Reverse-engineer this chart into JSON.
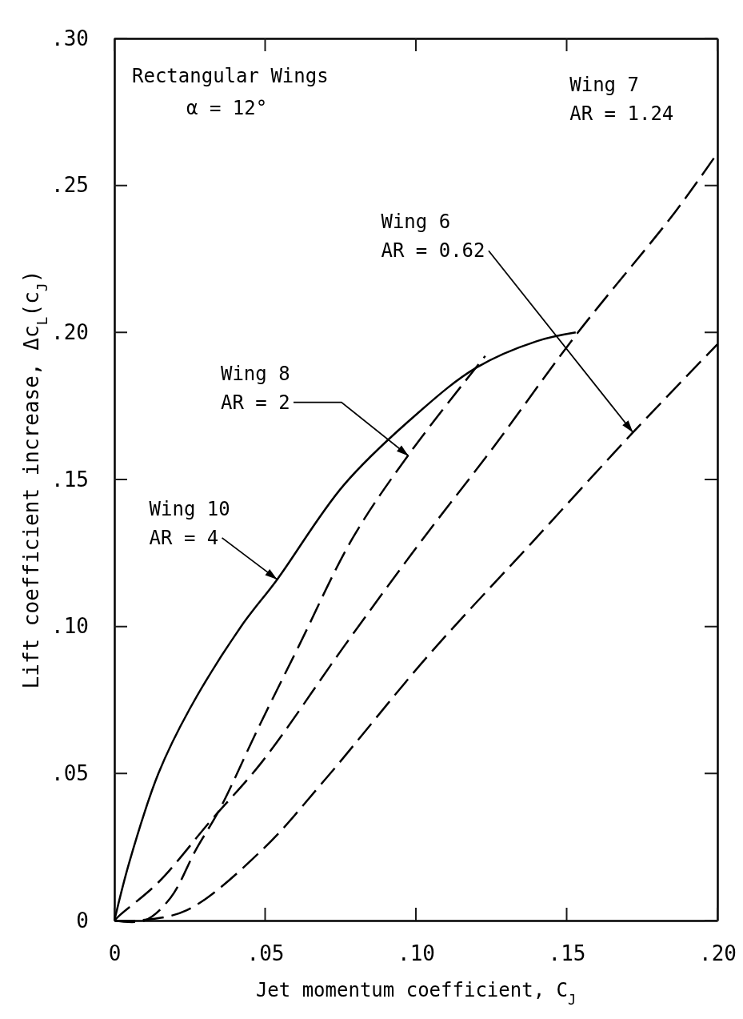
{
  "chart_data": {
    "type": "line",
    "title": "Rectangular Wings",
    "subtitle": "α = 12°",
    "xlabel": "Jet momentum coefficient, C$_{J}$",
    "ylabel": "Lift coefficient increase, Δc$_{L}$(c$_{J}$)",
    "xlim": [
      0,
      0.2
    ],
    "ylim": [
      0,
      0.3
    ],
    "xticks": [
      0,
      {
        "value": 0.05,
        "label": ".05"
      },
      {
        "value": 0.1,
        "label": ".10"
      },
      {
        "value": 0.15,
        "label": ".15"
      },
      {
        "value": 0.2,
        "label": ".20"
      }
    ],
    "yticks": [
      0,
      {
        "value": 0.05,
        "label": ".05"
      },
      {
        "value": 0.1,
        "label": ".10"
      },
      {
        "value": 0.15,
        "label": ".15"
      },
      {
        "value": 0.2,
        "label": ".20"
      },
      {
        "value": 0.25,
        "label": ".25"
      },
      {
        "value": 0.3,
        "label": ".30"
      }
    ],
    "grid": false,
    "marker": "none",
    "series": [
      {
        "color": "#000000",
        "line_style": "solid",
        "x": [
          0,
          0.005,
          0.0146,
          0.025,
          0.042,
          0.054,
          0.076,
          0.1,
          0.12,
          0.14,
          0.153
        ],
        "values": [
          0,
          0.02,
          0.05,
          0.072,
          0.1,
          0.116,
          0.148,
          0.172,
          0.188,
          0.197,
          0.2
        ]
      },
      {
        "color": "#000000",
        "line_style": "dashed",
        "x": [
          0,
          0.01,
          0.0186,
          0.027,
          0.035,
          0.0475,
          0.061,
          0.079,
          0.098,
          0.123
        ],
        "values": [
          0,
          0,
          0.0077,
          0.024,
          0.038,
          0.065,
          0.093,
          0.13,
          0.159,
          0.192
        ]
      },
      {
        "color": "#000000",
        "line_style": "dashed",
        "x": [
          0,
          0.002,
          0.0146,
          0.032,
          0.049,
          0.076,
          0.101,
          0.125,
          0.153,
          0.186,
          0.2
        ],
        "values": [
          0,
          0.002,
          0.013,
          0.034,
          0.054,
          0.093,
          0.128,
          0.16,
          0.199,
          0.241,
          0.261
        ]
      },
      {
        "color": "#000000",
        "line_style": "dashed",
        "x": [
          0,
          0.0077,
          0.024,
          0.049,
          0.0695,
          0.104,
          0.138,
          0.172,
          0.2
        ],
        "values": [
          0,
          0,
          0.0035,
          0.024,
          0.0475,
          0.09,
          0.128,
          0.166,
          0.196
        ]
      }
    ],
    "annotations": [
      {
        "text": "Wing 10\nAR = 4",
        "x": 0.054,
        "y": 0.116
      },
      {
        "text": "Wing 8\nAR = 2",
        "x": 0.0976,
        "y": 0.158
      },
      "Wing 7\nAR = 1.24",
      {
        "text": "Wing 6\nAR = 0.62",
        "x": 0.172,
        "y": 0.166
      }
    ]
  }
}
